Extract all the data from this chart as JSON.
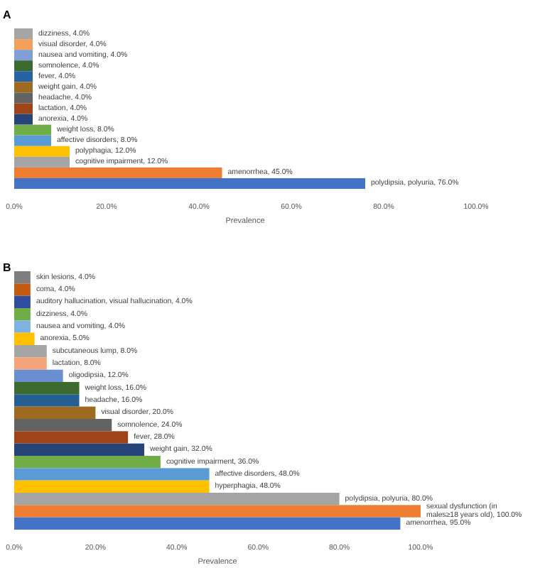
{
  "chart_data": [
    {
      "type": "bar",
      "title": "A",
      "orientation": "horizontal",
      "xlabel": "Prevalence",
      "categories": [
        null,
        null,
        null,
        null,
        null,
        null,
        null,
        null,
        null,
        null,
        null,
        null,
        null,
        null,
        null
      ],
      "values": [
        4,
        4,
        4,
        4,
        4,
        4,
        4,
        4,
        4,
        8,
        8,
        12,
        12,
        45,
        76
      ],
      "value_labels": [
        "dizziness, 4.0%",
        "visual disorder, 4.0%",
        "nausea and vomiting, 4.0%",
        "somnolence, 4.0%",
        "fever, 4.0%",
        "weight gain, 4.0%",
        "headache, 4.0%",
        "lactation, 4.0%",
        "anorexia, 4.0%",
        "weight loss, 8.0%",
        "affective disorders, 8.0%",
        "polyphagia, 12.0%",
        "cognitive impairment, 12.0%",
        "amenorrhea, 45.0%",
        "polydipsia, polyuria, 76.0%"
      ],
      "colors": [
        "#a5a5a5",
        "#f4a05c",
        "#7f9fd6",
        "#3d6b2f",
        "#2563a3",
        "#9c6b1f",
        "#636363",
        "#9e4418",
        "#264478",
        "#70ad47",
        "#5b9bd5",
        "#ffc000",
        "#a5a5a5",
        "#ed7d31",
        "#4472c4"
      ],
      "xlim": [
        0,
        100
      ],
      "xticks": [
        {
          "value": 0,
          "label": "0.0%"
        },
        {
          "value": 20,
          "label": "20.0%"
        },
        {
          "value": 40,
          "label": "40.0%"
        },
        {
          "value": 60,
          "label": "60.0%"
        },
        {
          "value": 80,
          "label": "80.0%"
        },
        {
          "value": 100,
          "label": "100.0%"
        }
      ]
    },
    {
      "type": "bar",
      "title": "B",
      "orientation": "horizontal",
      "xlabel": "Prevalence",
      "categories": [
        null,
        null,
        null,
        null,
        null,
        null,
        null,
        null,
        null,
        null,
        null,
        null,
        null,
        null,
        null,
        null,
        null,
        null,
        null,
        null,
        null
      ],
      "values": [
        4,
        4,
        4,
        4,
        4,
        5,
        8,
        8,
        12,
        16,
        16,
        20,
        24,
        28,
        32,
        36,
        48,
        48,
        80,
        100,
        95
      ],
      "value_labels": [
        "skin lesions, 4.0%",
        "coma, 4.0%",
        "auditory hallucination, visual hallucination, 4.0%",
        "dizziness, 4.0%",
        "nausea and vomiting, 4.0%",
        "anorexia, 5.0%",
        "subcutaneous lump, 8.0%",
        "lactation, 8.0%",
        "oligodipsia, 12.0%",
        "weight loss, 16.0%",
        "headache, 16.0%",
        "visual disorder, 20.0%",
        "somnolence, 24.0%",
        "fever, 28.0%",
        "weight gain, 32.0%",
        "cognitive impairment, 36.0%",
        "affective disorders, 48.0%",
        "hyperphagia, 48.0%",
        "polydipsia, polyuria, 80.0%",
        "sexual dysfunction (in males≥18 years old), 100.0%",
        "amenorrhea, 95.0%"
      ],
      "colors": [
        "#7f7f7f",
        "#c55a11",
        "#2e4d9e",
        "#70ad47",
        "#7fb2e0",
        "#ffc000",
        "#a5a5a5",
        "#f4a57a",
        "#6a8fd0",
        "#3d6b2f",
        "#255e91",
        "#9c6b1f",
        "#636363",
        "#9e4418",
        "#264478",
        "#70ad47",
        "#5b9bd5",
        "#ffc000",
        "#a5a5a5",
        "#ed7d31",
        "#4472c4"
      ],
      "xlim": [
        0,
        100
      ],
      "xticks": [
        {
          "value": 0,
          "label": "0.0%"
        },
        {
          "value": 20,
          "label": "20.0%"
        },
        {
          "value": 40,
          "label": "40.0%"
        },
        {
          "value": 60,
          "label": "60.0%"
        },
        {
          "value": 80,
          "label": "80.0%"
        },
        {
          "value": 100,
          "label": "100.0%"
        }
      ]
    }
  ]
}
